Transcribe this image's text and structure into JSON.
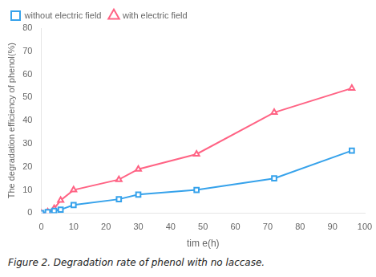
{
  "chart_data": {
    "type": "line",
    "x_label": "tim e(h)",
    "y_label": "The degradation efficiency of phenol(%)",
    "caption": "Figure 2. Degradation rate of phenol with no laccase.",
    "series": [
      {
        "name": "without electric field",
        "marker": "square",
        "x": [
          0,
          2,
          4,
          6,
          10,
          24,
          30,
          48,
          72,
          96
        ],
        "values": [
          0,
          0.5,
          1,
          1.5,
          3.5,
          6,
          8,
          10,
          15,
          27
        ]
      },
      {
        "name": "with electric field",
        "marker": "triangle",
        "x": [
          0,
          2,
          4,
          6,
          10,
          24,
          30,
          48,
          72,
          96
        ],
        "values": [
          0,
          0.5,
          2,
          5.5,
          10,
          14.5,
          19,
          25.5,
          43.5,
          54
        ]
      }
    ],
    "xlim": [
      0,
      100
    ],
    "ylim": [
      0,
      80
    ],
    "xticks": [
      0,
      10,
      20,
      30,
      40,
      50,
      60,
      70,
      80,
      90,
      100
    ],
    "yticks": [
      0,
      10,
      20,
      30,
      40,
      50,
      60,
      70,
      80
    ],
    "grid": false,
    "legend": "upper left"
  }
}
